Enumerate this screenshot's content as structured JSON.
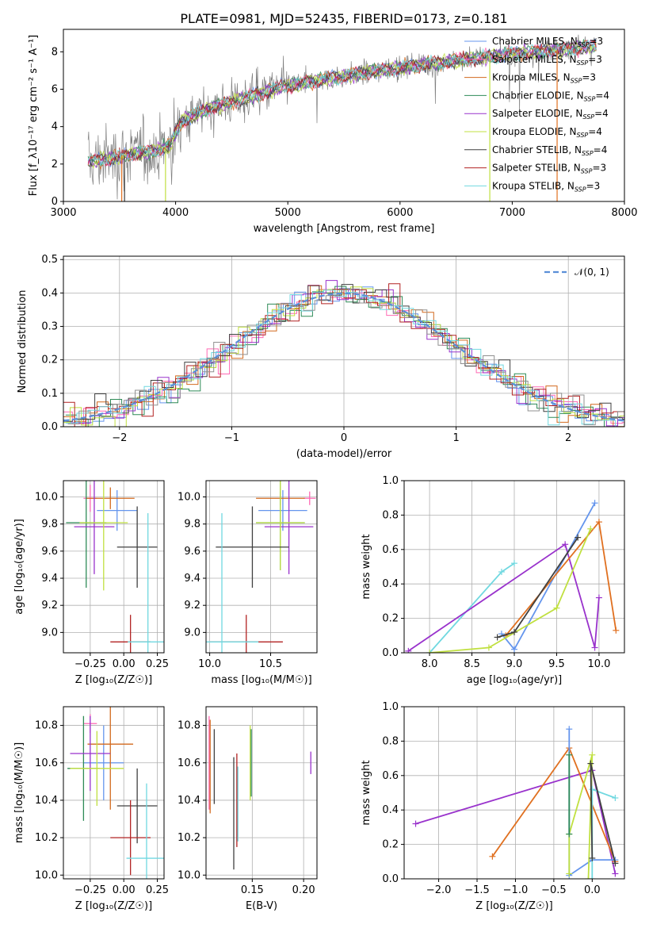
{
  "title": "PLATE=0981, MJD=52435, FIBERID=0173, z=0.181",
  "colors": {
    "chabrier_miles": "#6495ed",
    "salpeter_miles": "#ff69b4",
    "kroupa_miles": "#d2691e",
    "chabrier_elodie": "#2e8b57",
    "salpeter_elodie": "#9932cc",
    "kroupa_elodie": "#c0e040",
    "chabrier_stelib": "#404040",
    "salpeter_stelib": "#b22222",
    "kroupa_stelib": "#70d8e0",
    "data": "#808080",
    "orange": "#e07020",
    "normal": "#5b8fd8"
  },
  "chart_data": [
    {
      "id": "spectrum",
      "type": "line",
      "xlabel": "wavelength [Angstrom, rest frame]",
      "ylabel": "Flux [f_λ10⁻¹⁷ erg cm⁻² s⁻¹ A⁻¹]",
      "xlim": [
        3000,
        8000
      ],
      "ylim": [
        0,
        9.2
      ],
      "xticks": [
        3000,
        4000,
        5000,
        6000,
        7000,
        8000
      ],
      "yticks": [
        0,
        2,
        4,
        6,
        8
      ],
      "legend_position": "right",
      "legend": [
        {
          "label": "Chabrier MILES, N",
          "sub": "SSP",
          "tail": "=3"
        },
        {
          "label": "Salpeter MILES, N",
          "sub": "SSP",
          "tail": "=3"
        },
        {
          "label": "Kroupa MILES, N",
          "sub": "SSP",
          "tail": "=3"
        },
        {
          "label": "Chabrier ELODIE, N",
          "sub": "SSP",
          "tail": "=4"
        },
        {
          "label": "Salpeter ELODIE, N",
          "sub": "SSP",
          "tail": "=4"
        },
        {
          "label": "Kroupa ELODIE, N",
          "sub": "SSP",
          "tail": "=4"
        },
        {
          "label": "Chabrier STELIB, N",
          "sub": "SSP",
          "tail": "=4"
        },
        {
          "label": "Salpeter STELIB, N",
          "sub": "SSP",
          "tail": "=3"
        },
        {
          "label": "Kroupa STELIB, N",
          "sub": "SSP",
          "tail": "=3"
        }
      ],
      "continuum": [
        [
          3220,
          2.1
        ],
        [
          3500,
          2.4
        ],
        [
          3800,
          2.7
        ],
        [
          3950,
          3.0
        ],
        [
          4050,
          4.3
        ],
        [
          4300,
          5.0
        ],
        [
          4600,
          5.5
        ],
        [
          5000,
          6.2
        ],
        [
          5400,
          6.6
        ],
        [
          5800,
          7.0
        ],
        [
          6200,
          7.3
        ],
        [
          6600,
          7.6
        ],
        [
          7000,
          7.9
        ],
        [
          7400,
          8.1
        ],
        [
          7750,
          8.3
        ]
      ]
    },
    {
      "id": "residuals",
      "type": "histogram",
      "xlabel": "(data-model)/error",
      "ylabel": "Normed distribution",
      "xlim": [
        -2.5,
        2.5
      ],
      "ylim": [
        0,
        0.51
      ],
      "xticks": [
        -2,
        -1,
        0,
        1,
        2
      ],
      "yticks": [
        0,
        0.1,
        0.2,
        0.3,
        0.4,
        0.5
      ],
      "legend_label": "𝒩(0, 1)",
      "legend_position": "top-right",
      "bin_width": 0.1
    },
    {
      "id": "age_vs_Z",
      "type": "errorbar",
      "xlabel": "Z [log₁₀(Z/Z☉)]",
      "ylabel": "age  [log₁₀(age/yr)]",
      "xlim": [
        -0.45,
        0.3
      ],
      "ylim": [
        8.85,
        10.12
      ],
      "xticks": [
        -0.25,
        0.0,
        0.25
      ],
      "xtick_labels": [
        "−0.25",
        "0.00",
        "0.25"
      ],
      "yticks": [
        9.0,
        9.2,
        9.4,
        9.6,
        9.8,
        10.0
      ],
      "points": [
        {
          "c": "chabrier_miles",
          "x": -0.05,
          "xerr": 0.15,
          "y": 9.9,
          "yerr": 0.15
        },
        {
          "c": "salpeter_miles",
          "x": -0.25,
          "xerr": 0.05,
          "y": 9.99,
          "yerr": 0.1
        },
        {
          "c": "kroupa_miles",
          "x": -0.1,
          "xerr": 0.18,
          "y": 9.99,
          "yerr": 0.08
        },
        {
          "c": "chabrier_elodie",
          "x": -0.28,
          "xerr": 0.15,
          "y": 9.81,
          "yerr": 0.48
        },
        {
          "c": "salpeter_elodie",
          "x": -0.22,
          "xerr": 0.15,
          "y": 9.78,
          "yerr": 0.35
        },
        {
          "c": "kroupa_elodie",
          "x": -0.15,
          "xerr": 0.18,
          "y": 9.81,
          "yerr": 0.5
        },
        {
          "c": "chabrier_stelib",
          "x": 0.1,
          "xerr": 0.15,
          "y": 9.63,
          "yerr": 0.3
        },
        {
          "c": "salpeter_stelib",
          "x": 0.05,
          "xerr": 0.15,
          "y": 8.93,
          "yerr": 0.2
        },
        {
          "c": "kroupa_stelib",
          "x": 0.18,
          "xerr": 0.15,
          "y": 8.93,
          "yerr": 0.95
        }
      ]
    },
    {
      "id": "age_vs_mass",
      "type": "errorbar",
      "xlabel": "mass [log₁₀(M/M☉)]",
      "ylabel": "",
      "xlim": [
        9.97,
        10.88
      ],
      "ylim": [
        8.85,
        10.12
      ],
      "xticks": [
        10.0,
        10.5
      ],
      "xtick_labels": [
        "10.0",
        "10.5"
      ],
      "yticks": [
        9.0,
        9.2,
        9.4,
        9.6,
        9.8,
        10.0
      ],
      "points": [
        {
          "c": "chabrier_miles",
          "x": 10.6,
          "xerr": 0.2,
          "y": 9.9,
          "yerr": 0.15
        },
        {
          "c": "salpeter_miles",
          "x": 10.82,
          "xerr": 0.05,
          "y": 9.99,
          "yerr": 0.05
        },
        {
          "c": "kroupa_miles",
          "x": 10.58,
          "xerr": 0.2,
          "y": 9.99,
          "yerr": 0.05
        },
        {
          "c": "chabrier_elodie",
          "x": 10.58,
          "xerr": 0.2,
          "y": 9.81,
          "yerr": 0.35
        },
        {
          "c": "salpeter_elodie",
          "x": 10.65,
          "xerr": 0.2,
          "y": 9.78,
          "yerr": 0.35
        },
        {
          "c": "kroupa_elodie",
          "x": 10.58,
          "xerr": 0.2,
          "y": 9.81,
          "yerr": 0.35
        },
        {
          "c": "chabrier_stelib",
          "x": 10.35,
          "xerr": 0.3,
          "y": 9.63,
          "yerr": 0.3
        },
        {
          "c": "salpeter_stelib",
          "x": 10.3,
          "xerr": 0.3,
          "y": 8.93,
          "yerr": 0.2
        },
        {
          "c": "kroupa_stelib",
          "x": 10.1,
          "xerr": 0.3,
          "y": 8.93,
          "yerr": 0.95
        }
      ]
    },
    {
      "id": "weight_vs_age",
      "type": "line",
      "xlabel": "age  [log₁₀(age/yr)]",
      "ylabel": "mass weight",
      "xlim": [
        7.7,
        10.3
      ],
      "ylim": [
        0,
        1
      ],
      "xticks": [
        8.0,
        8.5,
        9.0,
        9.5,
        10.0
      ],
      "xtick_labels": [
        "8.0",
        "8.5",
        "9.0",
        "9.5",
        "10.0"
      ],
      "yticks": [
        0,
        0.2,
        0.4,
        0.6,
        0.8,
        1.0
      ],
      "series": [
        {
          "c": "kroupa_stelib",
          "x": [
            8.0,
            8.85,
            9.0
          ],
          "y": [
            0.0,
            0.47,
            0.52
          ]
        },
        {
          "c": "salpeter_elodie",
          "x": [
            7.75,
            9.6,
            9.95,
            10.0
          ],
          "y": [
            0.01,
            0.63,
            0.03,
            0.32
          ]
        },
        {
          "c": "chabrier_miles",
          "x": [
            8.85,
            9.0,
            9.95
          ],
          "y": [
            0.11,
            0.02,
            0.87
          ]
        },
        {
          "c": "orange",
          "x": [
            8.9,
            10.0,
            10.2
          ],
          "y": [
            0.1,
            0.76,
            0.13
          ]
        },
        {
          "c": "kroupa_elodie",
          "x": [
            8.0,
            8.7,
            9.5,
            9.9
          ],
          "y": [
            0.0,
            0.03,
            0.26,
            0.72
          ]
        },
        {
          "c": "chabrier_stelib",
          "x": [
            8.8,
            9.0,
            9.75
          ],
          "y": [
            0.09,
            0.12,
            0.67
          ]
        }
      ]
    },
    {
      "id": "mass_vs_Z",
      "type": "errorbar",
      "xlabel": "Z [log₁₀(Z/Z☉)]",
      "ylabel": "mass [log₁₀(M/M☉)]",
      "xlim": [
        -0.45,
        0.3
      ],
      "ylim": [
        9.98,
        10.9
      ],
      "xticks": [
        -0.25,
        0.0,
        0.25
      ],
      "xtick_labels": [
        "−0.25",
        "0.00",
        "0.25"
      ],
      "yticks": [
        10.0,
        10.2,
        10.4,
        10.6,
        10.8
      ],
      "points": [
        {
          "c": "chabrier_miles",
          "x": -0.15,
          "xerr": 0.15,
          "y": 10.6,
          "yerr": 0.2
        },
        {
          "c": "salpeter_miles",
          "x": -0.25,
          "xerr": 0.05,
          "y": 10.81,
          "yerr": 0.05
        },
        {
          "c": "kroupa_miles",
          "x": -0.1,
          "xerr": 0.17,
          "y": 10.7,
          "yerr": 0.35
        },
        {
          "c": "chabrier_elodie",
          "x": -0.3,
          "xerr": 0.12,
          "y": 10.57,
          "yerr": 0.28
        },
        {
          "c": "salpeter_elodie",
          "x": -0.25,
          "xerr": 0.15,
          "y": 10.65,
          "yerr": 0.2
        },
        {
          "c": "kroupa_elodie",
          "x": -0.2,
          "xerr": 0.2,
          "y": 10.57,
          "yerr": 0.2
        },
        {
          "c": "chabrier_stelib",
          "x": 0.1,
          "xerr": 0.15,
          "y": 10.37,
          "yerr": 0.2
        },
        {
          "c": "salpeter_stelib",
          "x": 0.05,
          "xerr": 0.15,
          "y": 10.2,
          "yerr": 0.2
        },
        {
          "c": "kroupa_stelib",
          "x": 0.17,
          "xerr": 0.15,
          "y": 10.09,
          "yerr": 0.4
        }
      ]
    },
    {
      "id": "mass_vs_ebv",
      "type": "errorbar",
      "xlabel": "E(B-V)",
      "ylabel": "",
      "xlim": [
        0.105,
        0.213
      ],
      "ylim": [
        9.98,
        10.9
      ],
      "xticks": [
        0.15,
        0.2
      ],
      "xtick_labels": [
        "0.15",
        "0.20"
      ],
      "yticks": [
        10.0,
        10.2,
        10.4,
        10.6,
        10.8
      ],
      "points": [
        {
          "c": "salpeter_miles",
          "x": 0.108,
          "y": 10.6,
          "yerr": 0.25
        },
        {
          "c": "kroupa_miles",
          "x": 0.109,
          "y": 10.58,
          "yerr": 0.25
        },
        {
          "c": "chabrier_stelib",
          "x": 0.113,
          "y": 10.58,
          "yerr": 0.2
        },
        {
          "c": "chabrier_stelib",
          "x": 0.132,
          "y": 10.33,
          "yerr": 0.3
        },
        {
          "c": "salpeter_stelib",
          "x": 0.135,
          "y": 10.4,
          "yerr": 0.25
        },
        {
          "c": "kroupa_stelib",
          "x": 0.136,
          "y": 10.38,
          "yerr": 0.2
        },
        {
          "c": "kroupa_elodie",
          "x": 0.148,
          "y": 10.6,
          "yerr": 0.2
        },
        {
          "c": "chabrier_elodie",
          "x": 0.149,
          "y": 10.6,
          "yerr": 0.18
        },
        {
          "c": "salpeter_elodie",
          "x": 0.207,
          "y": 10.6,
          "yerr": 0.06
        }
      ]
    },
    {
      "id": "weight_vs_Z",
      "type": "line",
      "xlabel": "Z [log₁₀(Z/Z☉)]",
      "ylabel": "mass weight",
      "xlim": [
        -2.45,
        0.42
      ],
      "ylim": [
        0,
        1
      ],
      "xticks": [
        -2.0,
        -1.5,
        -1.0,
        -0.5,
        0.0
      ],
      "xtick_labels": [
        "−2.0",
        "−1.5",
        "−1.0",
        "−0.5",
        "0.0"
      ],
      "yticks": [
        0,
        0.2,
        0.4,
        0.6,
        0.8,
        1.0
      ],
      "series": [
        {
          "c": "salpeter_elodie",
          "x": [
            -2.3,
            0.0,
            0.3
          ],
          "y": [
            0.32,
            0.63,
            0.03
          ]
        },
        {
          "c": "orange",
          "x": [
            -1.3,
            -0.3,
            0.3
          ],
          "y": [
            0.13,
            0.76,
            0.1
          ]
        },
        {
          "c": "chabrier_miles",
          "x": [
            -0.3,
            -0.3,
            0.0,
            0.3
          ],
          "y": [
            0.87,
            0.02,
            0.11,
            0.11
          ]
        },
        {
          "c": "kroupa_elodie",
          "x": [
            -0.3,
            -0.3,
            0.0,
            -0.05
          ],
          "y": [
            0.03,
            0.26,
            0.72,
            0.0
          ]
        },
        {
          "c": "chabrier_elodie",
          "x": [
            -0.3,
            -0.3
          ],
          "y": [
            0.72,
            0.26
          ]
        },
        {
          "c": "kroupa_stelib",
          "x": [
            0.0,
            0.0,
            0.3
          ],
          "y": [
            0.0,
            0.52,
            0.47
          ]
        },
        {
          "c": "chabrier_stelib",
          "x": [
            0.0,
            -0.02,
            0.3
          ],
          "y": [
            0.12,
            0.67,
            0.09
          ]
        }
      ]
    }
  ]
}
